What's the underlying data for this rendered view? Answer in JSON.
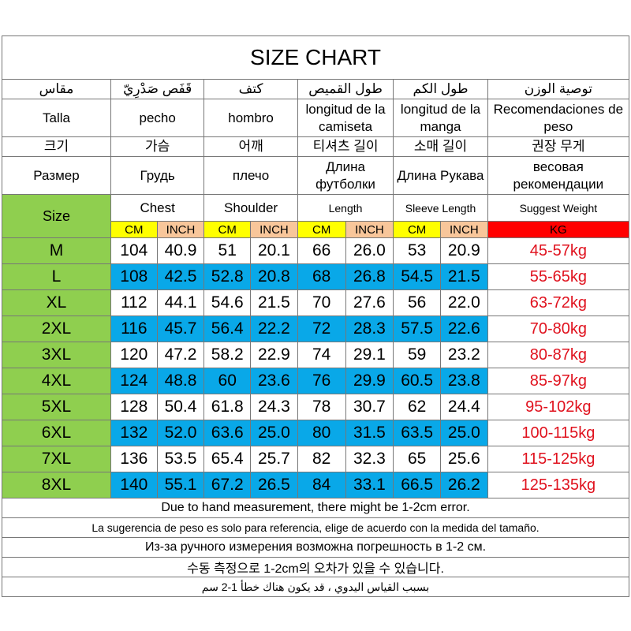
{
  "title": "SIZE CHART",
  "languages": {
    "arabic": [
      "مقاس",
      "قَفَص صَدْرِيّ",
      "كتف",
      "طول القميص",
      "طول الكم",
      "توصية الوزن"
    ],
    "spanish": [
      "Talla",
      "pecho",
      "hombro",
      "longitud de la camiseta",
      "longitud de la manga",
      "Recomendaciones de peso"
    ],
    "korean": [
      "크기",
      "가슴",
      "어깨",
      "티셔츠 길이",
      "소매 길이",
      "권장 무게"
    ],
    "russian": [
      "Размер",
      "Грудь",
      "плечо",
      "Длина футболки",
      "Длина Рукава",
      "весовая рекомендации"
    ]
  },
  "headers": {
    "size": "Size",
    "chest": "Chest",
    "shoulder": "Shoulder",
    "length": "Length",
    "sleeve": "Sleeve Length",
    "weight": "Suggest Weight"
  },
  "units": {
    "cm": "CM",
    "inch": "INCH",
    "kg": "KG"
  },
  "rows": [
    {
      "size": "M",
      "chest_cm": "104",
      "chest_in": "40.9",
      "sh_cm": "51",
      "sh_in": "20.1",
      "len_cm": "66",
      "len_in": "26.0",
      "sl_cm": "53",
      "sl_in": "20.9",
      "weight": "45-57kg"
    },
    {
      "size": "L",
      "chest_cm": "108",
      "chest_in": "42.5",
      "sh_cm": "52.8",
      "sh_in": "20.8",
      "len_cm": "68",
      "len_in": "26.8",
      "sl_cm": "54.5",
      "sl_in": "21.5",
      "weight": "55-65kg"
    },
    {
      "size": "XL",
      "chest_cm": "112",
      "chest_in": "44.1",
      "sh_cm": "54.6",
      "sh_in": "21.5",
      "len_cm": "70",
      "len_in": "27.6",
      "sl_cm": "56",
      "sl_in": "22.0",
      "weight": "63-72kg"
    },
    {
      "size": "2XL",
      "chest_cm": "116",
      "chest_in": "45.7",
      "sh_cm": "56.4",
      "sh_in": "22.2",
      "len_cm": "72",
      "len_in": "28.3",
      "sl_cm": "57.5",
      "sl_in": "22.6",
      "weight": "70-80kg"
    },
    {
      "size": "3XL",
      "chest_cm": "120",
      "chest_in": "47.2",
      "sh_cm": "58.2",
      "sh_in": "22.9",
      "len_cm": "74",
      "len_in": "29.1",
      "sl_cm": "59",
      "sl_in": "23.2",
      "weight": "80-87kg"
    },
    {
      "size": "4XL",
      "chest_cm": "124",
      "chest_in": "48.8",
      "sh_cm": "60",
      "sh_in": "23.6",
      "len_cm": "76",
      "len_in": "29.9",
      "sl_cm": "60.5",
      "sl_in": "23.8",
      "weight": "85-97kg"
    },
    {
      "size": "5XL",
      "chest_cm": "128",
      "chest_in": "50.4",
      "sh_cm": "61.8",
      "sh_in": "24.3",
      "len_cm": "78",
      "len_in": "30.7",
      "sl_cm": "62",
      "sl_in": "24.4",
      "weight": "95-102kg"
    },
    {
      "size": "6XL",
      "chest_cm": "132",
      "chest_in": "52.0",
      "sh_cm": "63.6",
      "sh_in": "25.0",
      "len_cm": "80",
      "len_in": "31.5",
      "sl_cm": "63.5",
      "sl_in": "25.0",
      "weight": "100-115kg"
    },
    {
      "size": "7XL",
      "chest_cm": "136",
      "chest_in": "53.5",
      "sh_cm": "65.4",
      "sh_in": "25.7",
      "len_cm": "82",
      "len_in": "32.3",
      "sl_cm": "65",
      "sl_in": "25.6",
      "weight": "115-125kg"
    },
    {
      "size": "8XL",
      "chest_cm": "140",
      "chest_in": "55.1",
      "sh_cm": "67.2",
      "sh_in": "26.5",
      "len_cm": "84",
      "len_in": "33.1",
      "sl_cm": "66.5",
      "sl_in": "26.2",
      "weight": "125-135kg"
    }
  ],
  "footer": [
    "Due to hand measurement, there might be 1-2cm error.",
    "La sugerencia de peso es solo para referencia, elige de acuerdo con la medida del tamaño.",
    "Из-за ручного измерения возможна погрешность в 1-2 см.",
    "수동 측정으로 1-2cm의 오차가 있을 수 있습니다.",
    "بسبب القياس اليدوي ، قد يكون هناك خطأ 1-2 سم"
  ],
  "colors": {
    "size_column": "#8fcf4f",
    "highlight_row": "#09a8e8",
    "cm_unit": "#ffff00",
    "inch_unit": "#f8c69a",
    "kg_unit": "#ff0000",
    "weight_text": "#e0121e"
  }
}
